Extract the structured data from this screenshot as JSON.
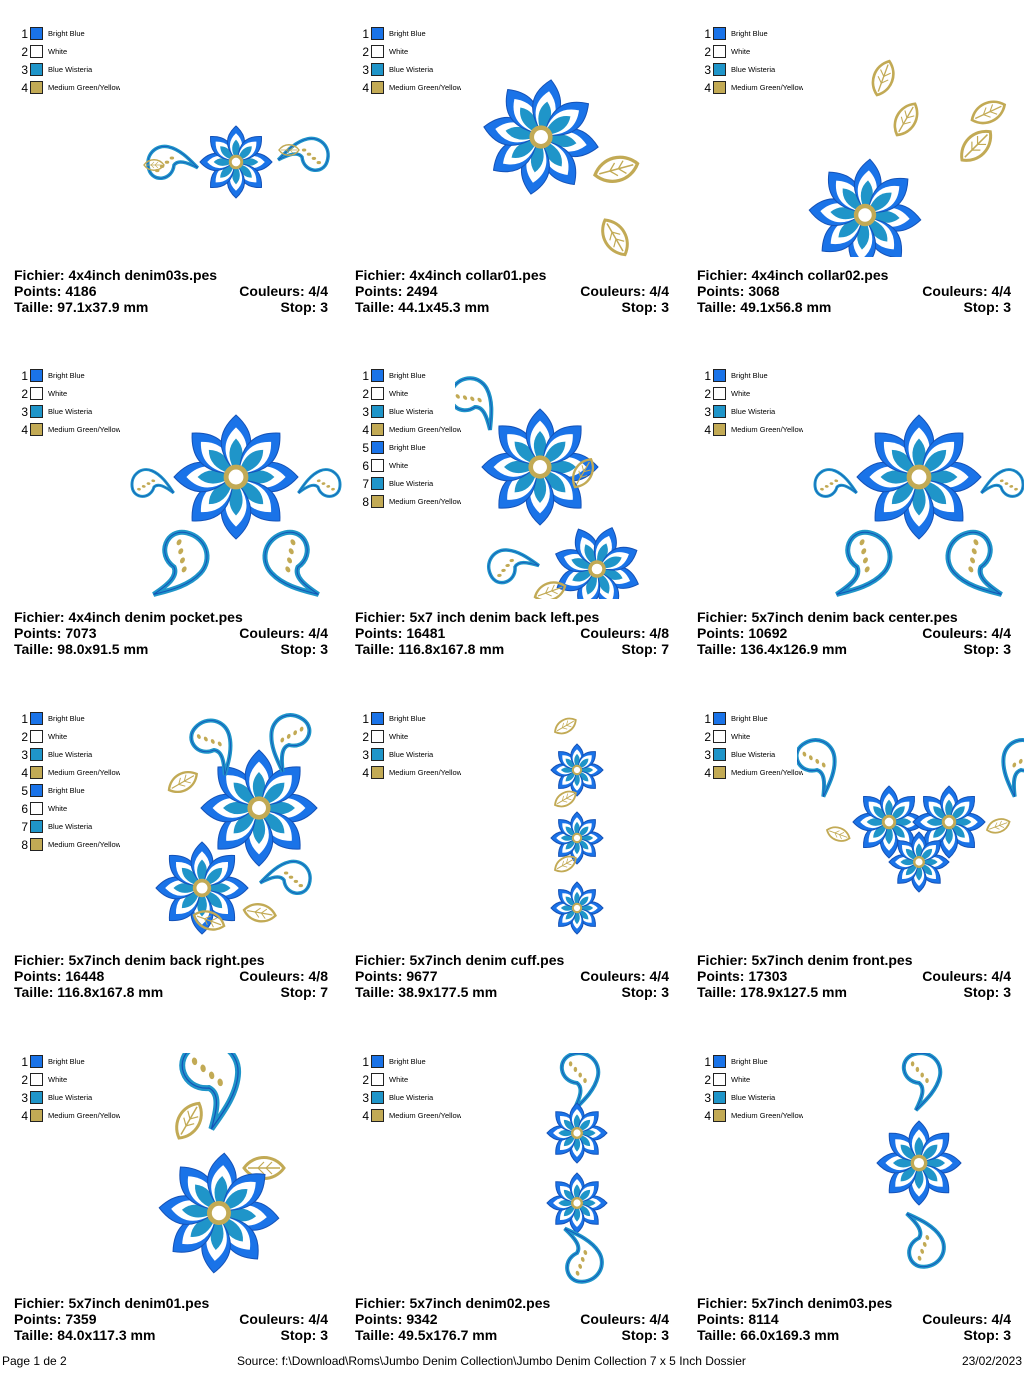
{
  "colors": {
    "bright_blue": "#1a73e8",
    "white": "#ffffff",
    "blue_wisteria": "#1f95c9",
    "gold": "#c2aa55"
  },
  "designs": [
    {
      "file": "Fichier: 4x4inch  denim03s.pes",
      "points": "Points: 4186",
      "colors_count": "Couleurs: 4/4",
      "size": "Taille: 97.1x37.9 mm",
      "stops": "Stop: 3",
      "legend": [
        {
          "n": "1",
          "name": "Bright Blue",
          "color": "#1a73e8"
        },
        {
          "n": "2",
          "name": "White",
          "color": "#ffffff"
        },
        {
          "n": "3",
          "name": "Blue Wisteria",
          "color": "#1f95c9"
        },
        {
          "n": "4",
          "name": "Medium Green/Yellow",
          "color": "#c2aa55"
        }
      ]
    },
    {
      "file": "Fichier: 4x4inch collar01.pes",
      "points": "Points: 2494",
      "colors_count": "Couleurs: 4/4",
      "size": "Taille: 44.1x45.3 mm",
      "stops": "Stop: 3",
      "legend": [
        {
          "n": "1",
          "name": "Bright Blue",
          "color": "#1a73e8"
        },
        {
          "n": "2",
          "name": "White",
          "color": "#ffffff"
        },
        {
          "n": "3",
          "name": "Blue Wisteria",
          "color": "#1f95c9"
        },
        {
          "n": "4",
          "name": "Medium Green/Yellow",
          "color": "#c2aa55"
        }
      ]
    },
    {
      "file": "Fichier: 4x4inch collar02.pes",
      "points": "Points: 3068",
      "colors_count": "Couleurs: 4/4",
      "size": "Taille: 49.1x56.8 mm",
      "stops": "Stop: 3",
      "legend": [
        {
          "n": "1",
          "name": "Bright Blue",
          "color": "#1a73e8"
        },
        {
          "n": "2",
          "name": "White",
          "color": "#ffffff"
        },
        {
          "n": "3",
          "name": "Blue Wisteria",
          "color": "#1f95c9"
        },
        {
          "n": "4",
          "name": "Medium Green/Yellow",
          "color": "#c2aa55"
        }
      ]
    },
    {
      "file": "Fichier: 4x4inch denim pocket.pes",
      "points": "Points: 7073",
      "colors_count": "Couleurs: 4/4",
      "size": "Taille: 98.0x91.5 mm",
      "stops": "Stop: 3",
      "legend": [
        {
          "n": "1",
          "name": "Bright Blue",
          "color": "#1a73e8"
        },
        {
          "n": "2",
          "name": "White",
          "color": "#ffffff"
        },
        {
          "n": "3",
          "name": "Blue Wisteria",
          "color": "#1f95c9"
        },
        {
          "n": "4",
          "name": "Medium Green/Yellow",
          "color": "#c2aa55"
        }
      ]
    },
    {
      "file": "Fichier: 5x7 inch denim back left.pes",
      "points": "Points: 16481",
      "colors_count": "Couleurs: 4/8",
      "size": "Taille: 116.8x167.8 mm",
      "stops": "Stop: 7",
      "legend": [
        {
          "n": "1",
          "name": "Bright Blue",
          "color": "#1a73e8"
        },
        {
          "n": "2",
          "name": "White",
          "color": "#ffffff"
        },
        {
          "n": "3",
          "name": "Blue Wisteria",
          "color": "#1f95c9"
        },
        {
          "n": "4",
          "name": "Medium Green/Yellow",
          "color": "#c2aa55"
        },
        {
          "n": "5",
          "name": "Bright Blue",
          "color": "#1a73e8"
        },
        {
          "n": "6",
          "name": "White",
          "color": "#ffffff"
        },
        {
          "n": "7",
          "name": "Blue Wisteria",
          "color": "#1f95c9"
        },
        {
          "n": "8",
          "name": "Medium Green/Yellow",
          "color": "#c2aa55"
        }
      ]
    },
    {
      "file": "Fichier: 5x7inch denim back center.pes",
      "points": "Points: 10692",
      "colors_count": "Couleurs: 4/4",
      "size": "Taille: 136.4x126.9 mm",
      "stops": "Stop: 3",
      "legend": [
        {
          "n": "1",
          "name": "Bright Blue",
          "color": "#1a73e8"
        },
        {
          "n": "2",
          "name": "White",
          "color": "#ffffff"
        },
        {
          "n": "3",
          "name": "Blue Wisteria",
          "color": "#1f95c9"
        },
        {
          "n": "4",
          "name": "Medium Green/Yellow",
          "color": "#c2aa55"
        }
      ]
    },
    {
      "file": "Fichier: 5x7inch denim back right.pes",
      "points": "Points: 16448",
      "colors_count": "Couleurs: 4/8",
      "size": "Taille: 116.8x167.8 mm",
      "stops": "Stop: 7",
      "legend": [
        {
          "n": "1",
          "name": "Bright Blue",
          "color": "#1a73e8"
        },
        {
          "n": "2",
          "name": "White",
          "color": "#ffffff"
        },
        {
          "n": "3",
          "name": "Blue Wisteria",
          "color": "#1f95c9"
        },
        {
          "n": "4",
          "name": "Medium Green/Yellow",
          "color": "#c2aa55"
        },
        {
          "n": "5",
          "name": "Bright Blue",
          "color": "#1a73e8"
        },
        {
          "n": "6",
          "name": "White",
          "color": "#ffffff"
        },
        {
          "n": "7",
          "name": "Blue Wisteria",
          "color": "#1f95c9"
        },
        {
          "n": "8",
          "name": "Medium Green/Yellow",
          "color": "#c2aa55"
        }
      ]
    },
    {
      "file": "Fichier: 5x7inch denim cuff.pes",
      "points": "Points: 9677",
      "colors_count": "Couleurs: 4/4",
      "size": "Taille: 38.9x177.5 mm",
      "stops": "Stop: 3",
      "legend": [
        {
          "n": "1",
          "name": "Bright Blue",
          "color": "#1a73e8"
        },
        {
          "n": "2",
          "name": "White",
          "color": "#ffffff"
        },
        {
          "n": "3",
          "name": "Blue Wisteria",
          "color": "#1f95c9"
        },
        {
          "n": "4",
          "name": "Medium Green/Yellow",
          "color": "#c2aa55"
        }
      ]
    },
    {
      "file": "Fichier: 5x7inch denim front.pes",
      "points": "Points: 17303",
      "colors_count": "Couleurs: 4/4",
      "size": "Taille: 178.9x127.5 mm",
      "stops": "Stop: 3",
      "legend": [
        {
          "n": "1",
          "name": "Bright Blue",
          "color": "#1a73e8"
        },
        {
          "n": "2",
          "name": "White",
          "color": "#ffffff"
        },
        {
          "n": "3",
          "name": "Blue Wisteria",
          "color": "#1f95c9"
        },
        {
          "n": "4",
          "name": "Medium Green/Yellow",
          "color": "#c2aa55"
        }
      ]
    },
    {
      "file": "Fichier: 5x7inch denim01.pes",
      "points": "Points: 7359",
      "colors_count": "Couleurs: 4/4",
      "size": "Taille: 84.0x117.3 mm",
      "stops": "Stop: 3",
      "legend": [
        {
          "n": "1",
          "name": "Bright Blue",
          "color": "#1a73e8"
        },
        {
          "n": "2",
          "name": "White",
          "color": "#ffffff"
        },
        {
          "n": "3",
          "name": "Blue Wisteria",
          "color": "#1f95c9"
        },
        {
          "n": "4",
          "name": "Medium Green/Yellow",
          "color": "#c2aa55"
        }
      ]
    },
    {
      "file": "Fichier: 5x7inch denim02.pes",
      "points": "Points: 9342",
      "colors_count": "Couleurs: 4/4",
      "size": "Taille: 49.5x176.7 mm",
      "stops": "Stop: 3",
      "legend": [
        {
          "n": "1",
          "name": "Bright Blue",
          "color": "#1a73e8"
        },
        {
          "n": "2",
          "name": "White",
          "color": "#ffffff"
        },
        {
          "n": "3",
          "name": "Blue Wisteria",
          "color": "#1f95c9"
        },
        {
          "n": "4",
          "name": "Medium Green/Yellow",
          "color": "#c2aa55"
        }
      ]
    },
    {
      "file": "Fichier: 5x7inch denim03.pes",
      "points": "Points: 8114",
      "colors_count": "Couleurs: 4/4",
      "size": "Taille: 66.0x169.3 mm",
      "stops": "Stop: 3",
      "legend": [
        {
          "n": "1",
          "name": "Bright Blue",
          "color": "#1a73e8"
        },
        {
          "n": "2",
          "name": "White",
          "color": "#ffffff"
        },
        {
          "n": "3",
          "name": "Blue Wisteria",
          "color": "#1f95c9"
        },
        {
          "n": "4",
          "name": "Medium Green/Yellow",
          "color": "#c2aa55"
        }
      ]
    }
  ],
  "footer": {
    "page": "Page 1 de 2",
    "source": "Source: f:\\Download\\Roms\\Jumbo Denim Collection\\Jumbo Denim Collection 7 x 5 Inch Dossier",
    "date": "23/02/2023"
  }
}
